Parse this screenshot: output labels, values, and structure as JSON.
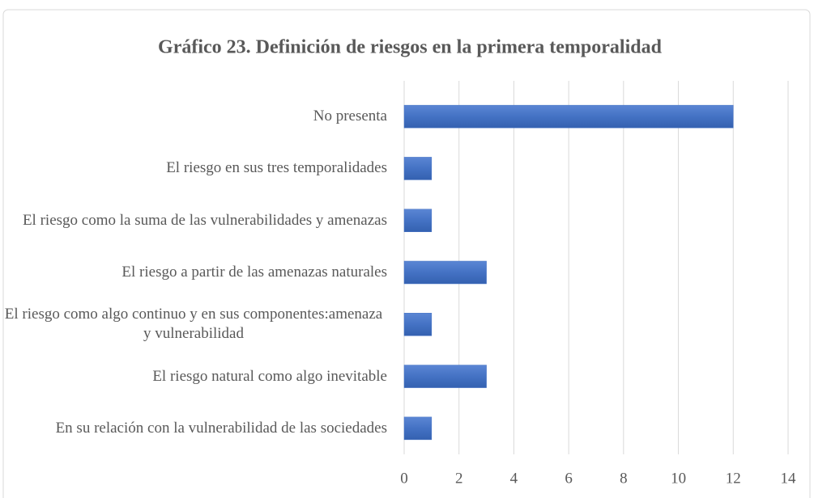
{
  "chart_data": {
    "type": "bar",
    "orientation": "horizontal",
    "title": "Gráfico 23. Definición de riesgos en la primera temporalidad",
    "categories": [
      "No presenta",
      "El riesgo en sus tres temporalidades",
      "El riesgo como la suma de las vulnerabilidades y amenazas",
      "El riesgo a partir de las amenazas naturales",
      "El riesgo como algo continuo y en sus componentes:amenaza y vulnerabilidad",
      "El riesgo natural como algo inevitable",
      "En su relación con la vulnerabilidad de las sociedades"
    ],
    "values": [
      12,
      1,
      1,
      3,
      1,
      3,
      1
    ],
    "color": "#4472c4",
    "xlim": [
      0,
      14
    ],
    "xticks": [
      0,
      2,
      4,
      6,
      8,
      10,
      12,
      14
    ],
    "grid": true
  }
}
